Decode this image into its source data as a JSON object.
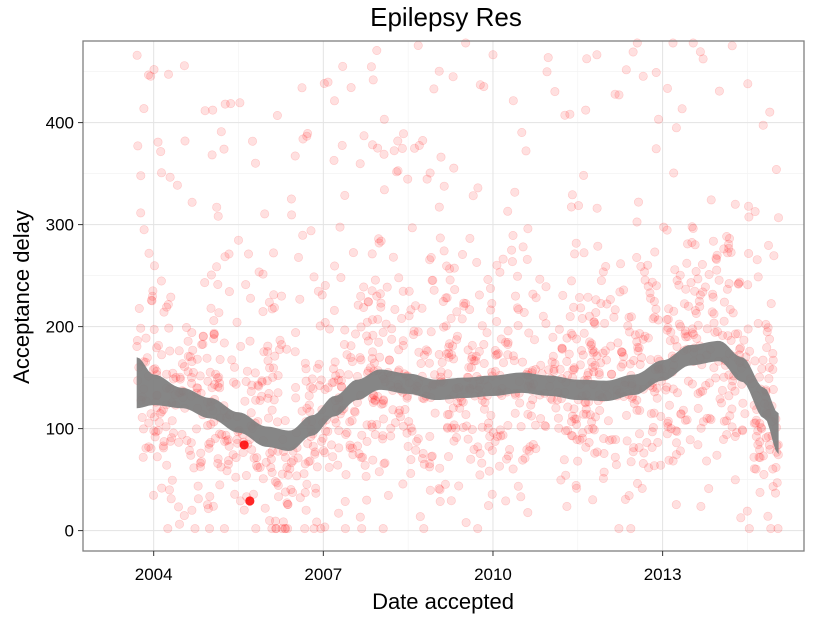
{
  "chart_data": {
    "type": "scatter",
    "title": "Epilepsy Res",
    "xlabel": "Date accepted",
    "ylabel": "Acceptance delay",
    "xlim": [
      2002.75,
      2015.5
    ],
    "ylim": [
      -20,
      480
    ],
    "x_ticks": [
      2004,
      2007,
      2010,
      2013
    ],
    "x_tick_labels": [
      "2004",
      "2007",
      "2010",
      "2013"
    ],
    "y_ticks": [
      0,
      100,
      200,
      300,
      400
    ],
    "y_tick_labels": [
      "0",
      "100",
      "200",
      "300",
      "400"
    ],
    "grid": true,
    "point_color": "#ff0000",
    "point_alpha": 0.12,
    "smooth_color": "#808080",
    "smooth": {
      "x": [
        2003.7,
        2004.0,
        2004.5,
        2005.0,
        2005.5,
        2006.0,
        2006.4,
        2006.8,
        2007.2,
        2007.6,
        2008.0,
        2008.5,
        2009.0,
        2009.5,
        2010.0,
        2010.5,
        2011.0,
        2011.5,
        2012.0,
        2012.5,
        2013.0,
        2013.5,
        2014.0,
        2014.4,
        2014.8,
        2015.05
      ],
      "y": [
        145,
        138,
        130,
        120,
        106,
        92,
        88,
        103,
        122,
        138,
        148,
        144,
        138,
        140,
        142,
        145,
        142,
        138,
        137,
        143,
        157,
        172,
        176,
        158,
        125,
        95
      ],
      "se": [
        25,
        15,
        10,
        10,
        10,
        10,
        10,
        10,
        10,
        10,
        10,
        10,
        10,
        10,
        10,
        10,
        10,
        10,
        10,
        10,
        10,
        10,
        10,
        12,
        15,
        20
      ]
    },
    "highlight_points": [
      {
        "x": 2005.6,
        "y": 84
      },
      {
        "x": 2005.7,
        "y": 29
      }
    ],
    "seed": 20150101
  }
}
